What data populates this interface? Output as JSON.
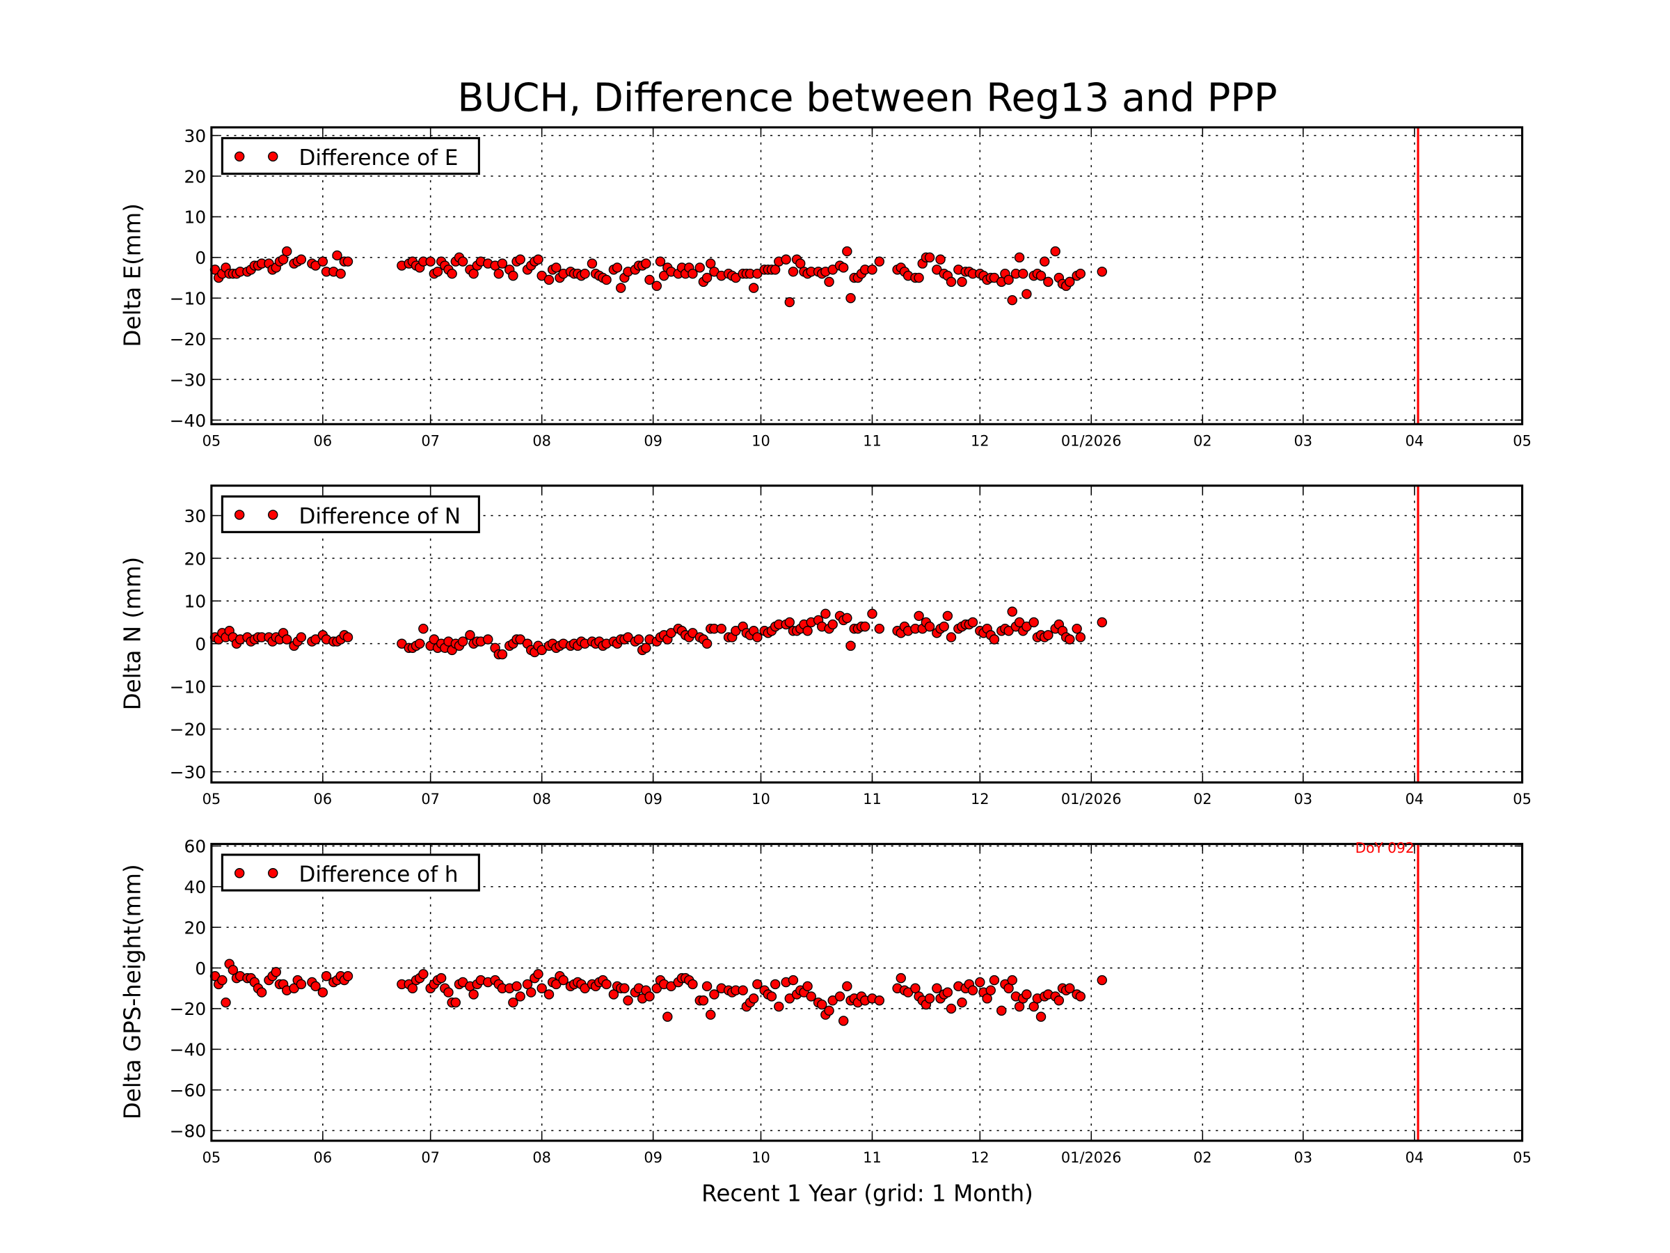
{
  "chart_data": [
    {
      "type": "scatter",
      "title": "BUCH, Difference between Reg13 and PPP",
      "ylabel": "Delta E(mm)",
      "legend": {
        "label": "Difference of E",
        "position": "top-left"
      },
      "ylim": [
        -41,
        32
      ],
      "yticks": [
        30,
        20,
        10,
        0,
        -10,
        -20,
        -30,
        -40
      ],
      "series_key": "E"
    },
    {
      "type": "scatter",
      "ylabel": "Delta N (mm)",
      "legend": {
        "label": "Difference of N",
        "position": "top-left"
      },
      "ylim": [
        -32.5,
        37
      ],
      "yticks": [
        30,
        20,
        10,
        0,
        -10,
        -20,
        -30
      ],
      "series_key": "N"
    },
    {
      "type": "scatter",
      "ylabel": "Delta GPS-height(mm)",
      "xlabel": "Recent 1 Year (grid: 1 Month)",
      "legend": {
        "label": "Difference of h",
        "position": "top-left"
      },
      "ylim": [
        -85,
        61
      ],
      "yticks": [
        60,
        40,
        20,
        0,
        -20,
        -40,
        -60,
        -80
      ],
      "annotation": "DoY 092",
      "series_key": "h"
    }
  ],
  "x_axis": {
    "xlim": [
      "2025-05-01",
      "2026-05-01"
    ],
    "ticks": [
      "2025-05-01",
      "2025-06-01",
      "2025-07-01",
      "2025-08-01",
      "2025-09-01",
      "2025-10-01",
      "2025-11-01",
      "2025-12-01",
      "2026-01-01",
      "2026-02-01",
      "2026-03-01",
      "2026-04-01",
      "2026-05-01"
    ],
    "tick_labels": [
      "05",
      "06",
      "07",
      "08",
      "09",
      "10",
      "11",
      "12",
      "01/2026",
      "02",
      "03",
      "04",
      "05"
    ],
    "grid": true
  },
  "marker_color": "#ff0000",
  "vline": {
    "date": "2026-04-02",
    "color": "#ff0000"
  },
  "dates": [
    "2025-05-02",
    "2025-05-03",
    "2025-05-04",
    "2025-05-05",
    "2025-05-06",
    "2025-05-07",
    "2025-05-08",
    "2025-05-09",
    "2025-05-11",
    "2025-05-12",
    "2025-05-13",
    "2025-05-14",
    "2025-05-15",
    "2025-05-17",
    "2025-05-18",
    "2025-05-19",
    "2025-05-20",
    "2025-05-21",
    "2025-05-22",
    "2025-05-24",
    "2025-05-25",
    "2025-05-26",
    "2025-05-29",
    "2025-05-30",
    "2025-06-01",
    "2025-06-02",
    "2025-06-04",
    "2025-06-05",
    "2025-06-06",
    "2025-06-07",
    "2025-06-08",
    "2025-06-23",
    "2025-06-25",
    "2025-06-26",
    "2025-06-27",
    "2025-06-28",
    "2025-06-29",
    "2025-07-01",
    "2025-07-02",
    "2025-07-03",
    "2025-07-04",
    "2025-07-05",
    "2025-07-06",
    "2025-07-07",
    "2025-07-08",
    "2025-07-09",
    "2025-07-10",
    "2025-07-12",
    "2025-07-13",
    "2025-07-14",
    "2025-07-15",
    "2025-07-17",
    "2025-07-19",
    "2025-07-20",
    "2025-07-21",
    "2025-07-23",
    "2025-07-24",
    "2025-07-25",
    "2025-07-26",
    "2025-07-28",
    "2025-07-29",
    "2025-07-30",
    "2025-07-31",
    "2025-08-01",
    "2025-08-03",
    "2025-08-04",
    "2025-08-05",
    "2025-08-06",
    "2025-08-07",
    "2025-08-09",
    "2025-08-10",
    "2025-08-11",
    "2025-08-12",
    "2025-08-13",
    "2025-08-15",
    "2025-08-16",
    "2025-08-17",
    "2025-08-18",
    "2025-08-19",
    "2025-08-21",
    "2025-08-22",
    "2025-08-23",
    "2025-08-24",
    "2025-08-25",
    "2025-08-27",
    "2025-08-28",
    "2025-08-29",
    "2025-08-30",
    "2025-08-31",
    "2025-09-02",
    "2025-09-03",
    "2025-09-04",
    "2025-09-05",
    "2025-09-06",
    "2025-09-08",
    "2025-09-09",
    "2025-09-10",
    "2025-09-11",
    "2025-09-12",
    "2025-09-14",
    "2025-09-15",
    "2025-09-16",
    "2025-09-17",
    "2025-09-18",
    "2025-09-20",
    "2025-09-22",
    "2025-09-23",
    "2025-09-24",
    "2025-09-26",
    "2025-09-27",
    "2025-09-28",
    "2025-09-29",
    "2025-09-30",
    "2025-10-02",
    "2025-10-03",
    "2025-10-04",
    "2025-10-05",
    "2025-10-06",
    "2025-10-08",
    "2025-10-09",
    "2025-10-10",
    "2025-10-11",
    "2025-10-12",
    "2025-10-13",
    "2025-10-14",
    "2025-10-15",
    "2025-10-17",
    "2025-10-18",
    "2025-10-19",
    "2025-10-20",
    "2025-10-21",
    "2025-10-23",
    "2025-10-24",
    "2025-10-25",
    "2025-10-26",
    "2025-10-27",
    "2025-10-28",
    "2025-10-29",
    "2025-10-30",
    "2025-11-01",
    "2025-11-03",
    "2025-11-08",
    "2025-11-09",
    "2025-11-10",
    "2025-11-11",
    "2025-11-13",
    "2025-11-14",
    "2025-11-15",
    "2025-11-16",
    "2025-11-17",
    "2025-11-19",
    "2025-11-20",
    "2025-11-21",
    "2025-11-22",
    "2025-11-23",
    "2025-11-25",
    "2025-11-26",
    "2025-11-27",
    "2025-11-28",
    "2025-11-29",
    "2025-12-01",
    "2025-12-02",
    "2025-12-03",
    "2025-12-04",
    "2025-12-05",
    "2025-12-07",
    "2025-12-08",
    "2025-12-09",
    "2025-12-10",
    "2025-12-11",
    "2025-12-12",
    "2025-12-13",
    "2025-12-14",
    "2025-12-16",
    "2025-12-17",
    "2025-12-18",
    "2025-12-19",
    "2025-12-20",
    "2025-12-22",
    "2025-12-23",
    "2025-12-24",
    "2025-12-25",
    "2025-12-26",
    "2025-12-28",
    "2025-12-29",
    "2026-01-04"
  ],
  "series": {
    "E": [
      -3,
      -5,
      -4,
      -2.5,
      -4,
      -4,
      -4,
      -3.5,
      -3.5,
      -3,
      -2,
      -2,
      -1.5,
      -1.5,
      -3,
      -2.5,
      -1,
      -0.5,
      1.5,
      -1.5,
      -1,
      -0.5,
      -1.5,
      -2,
      -1,
      -3.5,
      -3.5,
      0.5,
      -4,
      -1,
      -1,
      -2,
      -1.5,
      -1,
      -2,
      -2.5,
      -1,
      -1,
      -4,
      -3.5,
      -1,
      -2,
      -3,
      -4,
      -1,
      0,
      -1,
      -3,
      -4,
      -2,
      -1,
      -1.5,
      -2,
      -4,
      -1.5,
      -3,
      -4.5,
      -1,
      -0.5,
      -3,
      -2,
      -1,
      -0.5,
      -4.5,
      -5.5,
      -3,
      -2.5,
      -5,
      -4,
      -3.5,
      -4,
      -4,
      -4.5,
      -4,
      -1.5,
      -4,
      -4.5,
      -5,
      -5.5,
      -3,
      -2.5,
      -7.5,
      -5,
      -3.5,
      -3,
      -2,
      -2,
      -1.5,
      -5.5,
      -7,
      -1,
      -4.5,
      -2.5,
      -3.5,
      -4,
      -2.5,
      -4,
      -2.5,
      -4,
      -2.5,
      -6,
      -5,
      -1.5,
      -3.5,
      -4.5,
      -4,
      -4.5,
      -5,
      -4,
      -4,
      -4,
      -7.5,
      -4,
      -3,
      -3,
      -3,
      -3,
      -1,
      -0.5,
      -11,
      -3.5,
      -0.5,
      -1.5,
      -3.5,
      -4,
      -3.5,
      -3.5,
      -4,
      -3.5,
      -6,
      -3,
      -2,
      -2.5,
      1.5,
      -10,
      -5,
      -5,
      -4,
      -3,
      -3,
      -1,
      -3,
      -2.5,
      -3.5,
      -4.5,
      -5,
      -5,
      -1.5,
      0,
      0,
      -3,
      -0.5,
      -4,
      -4.5,
      -6,
      -3,
      -6,
      -3.5,
      -3.5,
      -4,
      -4,
      -4.5,
      -5.5,
      -5,
      -5,
      -6,
      -4,
      -5.5,
      -10.5,
      -4,
      0,
      -4,
      -9,
      -4.5,
      -4,
      -4.5,
      -1,
      -6,
      1.5,
      -5,
      -6.5,
      -7,
      -6,
      -4.5,
      -4,
      -3.5
    ],
    "N": [
      1.5,
      1,
      2.5,
      1.5,
      3,
      1.5,
      0,
      1,
      1.5,
      0.5,
      1,
      1.5,
      1.5,
      1.5,
      0.5,
      1.5,
      1,
      2.5,
      1,
      -0.5,
      0.5,
      1.5,
      0.5,
      1,
      2,
      1,
      0.5,
      0.5,
      1,
      2,
      1.5,
      0,
      -1,
      -1,
      -0.5,
      0,
      3.5,
      -0.5,
      1,
      -1,
      0,
      -1,
      0.5,
      -1.5,
      0,
      -0.5,
      0.5,
      2,
      0,
      0.5,
      0.5,
      1,
      -1,
      -2.5,
      -2.5,
      -0.5,
      0,
      1,
      1,
      0,
      -1.5,
      -2,
      -0.5,
      -1.5,
      -0.5,
      0,
      -1,
      -0.5,
      0,
      -0.5,
      0,
      -0.5,
      0.5,
      0,
      0.5,
      0,
      0.5,
      -0.5,
      0,
      0.5,
      0,
      1,
      1,
      1.5,
      0.5,
      1,
      -1.5,
      -1,
      1,
      0.5,
      1.5,
      2,
      1,
      2.5,
      3.5,
      3,
      2,
      1.5,
      2.5,
      1.5,
      1,
      0,
      3.5,
      3.5,
      3.5,
      1.5,
      1.5,
      3,
      4,
      2.5,
      2,
      3,
      1.5,
      3,
      2.5,
      3,
      4,
      4.5,
      4.5,
      5,
      3,
      3,
      3.5,
      4.5,
      3,
      5,
      5.5,
      4,
      7,
      3.5,
      4.5,
      6.5,
      5.5,
      6,
      -0.5,
      3.5,
      3.5,
      4,
      4,
      7,
      3.5,
      3,
      2.5,
      4,
      3,
      3.5,
      6.5,
      3.5,
      5,
      4,
      2.5,
      3.5,
      4,
      6.5,
      1.5,
      3.5,
      4,
      4.5,
      4.5,
      5,
      3,
      2.5,
      3.5,
      2,
      1,
      3,
      3.5,
      3,
      7.5,
      4,
      5,
      3,
      4,
      5,
      1.5,
      2,
      1.5,
      2,
      3.5,
      4.5,
      3,
      1.5,
      1,
      3.5,
      1.5,
      5
    ],
    "h": [
      -4,
      -8,
      -6,
      -17,
      2,
      -1,
      -5,
      -4,
      -5,
      -5,
      -7,
      -10,
      -12,
      -6,
      -4,
      -2,
      -8,
      -8,
      -11,
      -10,
      -6,
      -8,
      -7,
      -9,
      -12,
      -4,
      -7,
      -6,
      -4,
      -6,
      -4,
      -8,
      -8,
      -10,
      -6,
      -5,
      -3,
      -10,
      -8,
      -6,
      -5,
      -10,
      -12,
      -17,
      -17,
      -8,
      -7,
      -9,
      -13,
      -8,
      -6,
      -7,
      -6,
      -8,
      -10,
      -10,
      -17,
      -9,
      -14,
      -8,
      -12,
      -5,
      -3,
      -10,
      -13,
      -7,
      -8,
      -4,
      -6,
      -9,
      -8,
      -7,
      -8,
      -10,
      -8,
      -9,
      -7,
      -6,
      -8,
      -13,
      -9,
      -10,
      -10,
      -16,
      -12,
      -10,
      -15,
      -11,
      -14,
      -10,
      -6,
      -8,
      -24,
      -9,
      -7,
      -5,
      -5,
      -6,
      -8,
      -16,
      -16,
      -9,
      -23,
      -13,
      -10,
      -11,
      -12,
      -11,
      -11,
      -19,
      -17,
      -15,
      -8,
      -11,
      -13,
      -14,
      -8,
      -19,
      -7,
      -15,
      -6,
      -13,
      -11,
      -12,
      -9,
      -14,
      -17,
      -18,
      -23,
      -21,
      -16,
      -14,
      -26,
      -9,
      -16,
      -15,
      -17,
      -14,
      -16,
      -15,
      -16,
      -10,
      -5,
      -11,
      -12,
      -10,
      -14,
      -16,
      -18,
      -15,
      -10,
      -15,
      -13,
      -12,
      -20,
      -9,
      -17,
      -10,
      -8,
      -11,
      -7,
      -12,
      -15,
      -11,
      -6,
      -21,
      -8,
      -10,
      -6,
      -14,
      -19,
      -15,
      -13,
      -19,
      -15,
      -24,
      -14,
      -13,
      -14,
      -16,
      -10,
      -11,
      -10,
      -13,
      -14,
      -6
    ]
  }
}
